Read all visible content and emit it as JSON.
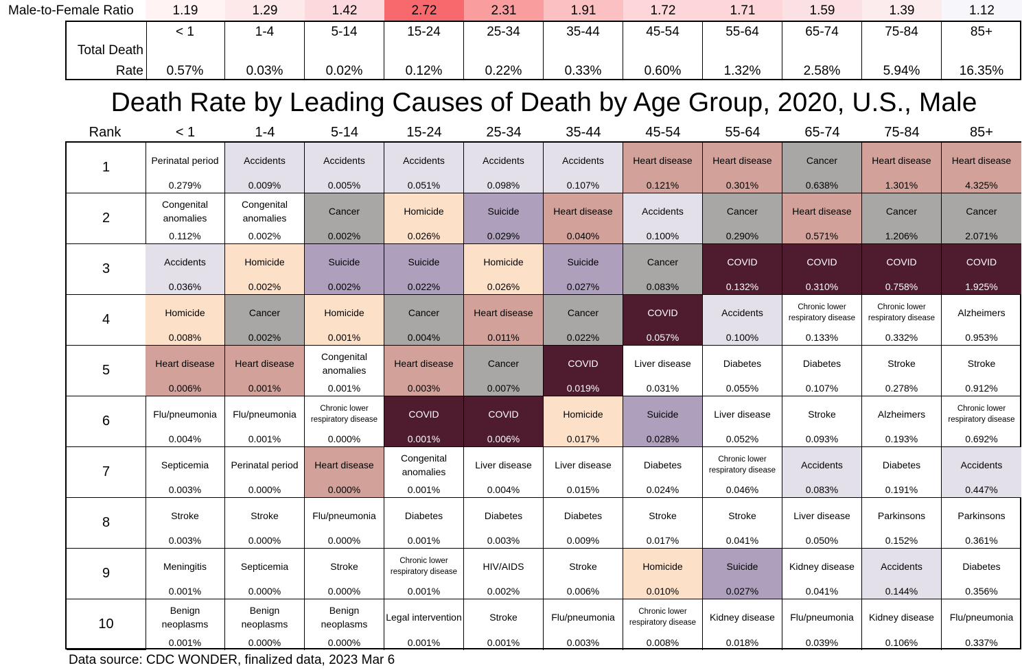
{
  "ratio_label": "Male-to-Female Ratio",
  "ratios": [
    "1.19",
    "1.29",
    "1.42",
    "2.72",
    "2.31",
    "1.91",
    "1.72",
    "1.71",
    "1.59",
    "1.39",
    "1.12"
  ],
  "ratio_colors": [
    "#fff3f3",
    "#fde8ea",
    "#fcd9dc",
    "#f7696c",
    "#f99d9f",
    "#fbc0c2",
    "#fcd6d9",
    "#fcd6d9",
    "#fce1e4",
    "#fdecee",
    "#f6f6fb"
  ],
  "total": {
    "label_line1": "Total Death",
    "label_line2": "Rate",
    "ages": [
      "< 1",
      "1-4",
      "5-14",
      "15-24",
      "25-34",
      "35-44",
      "45-54",
      "55-64",
      "65-74",
      "75-84",
      "85+"
    ],
    "values": [
      "0.57%",
      "0.03%",
      "0.02%",
      "0.12%",
      "0.22%",
      "0.33%",
      "0.60%",
      "1.32%",
      "2.58%",
      "5.94%",
      "16.35%"
    ]
  },
  "title": "Death Rate by Leading Causes of Death by Age Group, 2020, U.S., Male",
  "header": {
    "rank": "Rank",
    "ages": [
      "< 1",
      "1-4",
      "5-14",
      "15-24",
      "25-34",
      "35-44",
      "45-54",
      "55-64",
      "65-74",
      "75-84",
      "85+"
    ]
  },
  "cause_colors": {
    "Accidents": "#e4e0ea",
    "Heart disease": "#d2a29a",
    "Cancer": "#a9a6a6",
    "Homicide": "#fde0c8",
    "Suicide": "#aea0bd",
    "COVID": "#4e1b2f"
  },
  "ranks": [
    "1",
    "2",
    "3",
    "4",
    "5",
    "6",
    "7",
    "8",
    "9",
    "10"
  ],
  "rows": [
    [
      [
        "Perinatal period",
        "0.279%"
      ],
      [
        "Accidents",
        "0.009%"
      ],
      [
        "Accidents",
        "0.005%"
      ],
      [
        "Accidents",
        "0.051%"
      ],
      [
        "Accidents",
        "0.098%"
      ],
      [
        "Accidents",
        "0.107%"
      ],
      [
        "Heart disease",
        "0.121%"
      ],
      [
        "Heart disease",
        "0.301%"
      ],
      [
        "Cancer",
        "0.638%"
      ],
      [
        "Heart disease",
        "1.301%"
      ],
      [
        "Heart disease",
        "4.325%"
      ]
    ],
    [
      [
        "Congenital anomalies",
        "0.112%"
      ],
      [
        "Congenital anomalies",
        "0.002%"
      ],
      [
        "Cancer",
        "0.002%"
      ],
      [
        "Homicide",
        "0.026%"
      ],
      [
        "Suicide",
        "0.029%"
      ],
      [
        "Heart disease",
        "0.040%"
      ],
      [
        "Accidents",
        "0.100%"
      ],
      [
        "Cancer",
        "0.290%"
      ],
      [
        "Heart disease",
        "0.571%"
      ],
      [
        "Cancer",
        "1.206%"
      ],
      [
        "Cancer",
        "2.071%"
      ]
    ],
    [
      [
        "Accidents",
        "0.036%"
      ],
      [
        "Homicide",
        "0.002%"
      ],
      [
        "Suicide",
        "0.002%"
      ],
      [
        "Suicide",
        "0.022%"
      ],
      [
        "Homicide",
        "0.026%"
      ],
      [
        "Suicide",
        "0.027%"
      ],
      [
        "Cancer",
        "0.083%"
      ],
      [
        "COVID",
        "0.132%"
      ],
      [
        "COVID",
        "0.310%"
      ],
      [
        "COVID",
        "0.758%"
      ],
      [
        "COVID",
        "1.925%"
      ]
    ],
    [
      [
        "Homicide",
        "0.008%"
      ],
      [
        "Cancer",
        "0.002%"
      ],
      [
        "Homicide",
        "0.001%"
      ],
      [
        "Cancer",
        "0.004%"
      ],
      [
        "Heart disease",
        "0.011%"
      ],
      [
        "Cancer",
        "0.022%"
      ],
      [
        "COVID",
        "0.057%"
      ],
      [
        "Accidents",
        "0.100%"
      ],
      [
        "Chronic lower respiratory disease",
        "0.133%"
      ],
      [
        "Chronic lower respiratory disease",
        "0.332%"
      ],
      [
        "Alzheimers",
        "0.953%"
      ]
    ],
    [
      [
        "Heart disease",
        "0.006%"
      ],
      [
        "Heart disease",
        "0.001%"
      ],
      [
        "Congenital anomalies",
        "0.001%"
      ],
      [
        "Heart disease",
        "0.003%"
      ],
      [
        "Cancer",
        "0.007%"
      ],
      [
        "COVID",
        "0.019%"
      ],
      [
        "Liver disease",
        "0.031%"
      ],
      [
        "Diabetes",
        "0.055%"
      ],
      [
        "Diabetes",
        "0.107%"
      ],
      [
        "Stroke",
        "0.278%"
      ],
      [
        "Stroke",
        "0.912%"
      ]
    ],
    [
      [
        "Flu/pneumonia",
        "0.004%"
      ],
      [
        "Flu/pneumonia",
        "0.001%"
      ],
      [
        "Chronic lower respiratory disease",
        "0.000%"
      ],
      [
        "COVID",
        "0.001%"
      ],
      [
        "COVID",
        "0.006%"
      ],
      [
        "Homicide",
        "0.017%"
      ],
      [
        "Suicide",
        "0.028%"
      ],
      [
        "Liver disease",
        "0.052%"
      ],
      [
        "Stroke",
        "0.093%"
      ],
      [
        "Alzheimers",
        "0.193%"
      ],
      [
        "Chronic lower respiratory disease",
        "0.692%"
      ]
    ],
    [
      [
        "Septicemia",
        "0.003%"
      ],
      [
        "Perinatal period",
        "0.000%"
      ],
      [
        "Heart disease",
        "0.000%"
      ],
      [
        "Congenital anomalies",
        "0.001%"
      ],
      [
        "Liver disease",
        "0.004%"
      ],
      [
        "Liver disease",
        "0.015%"
      ],
      [
        "Diabetes",
        "0.024%"
      ],
      [
        "Chronic lower respiratory disease",
        "0.046%"
      ],
      [
        "Accidents",
        "0.083%"
      ],
      [
        "Diabetes",
        "0.191%"
      ],
      [
        "Accidents",
        "0.447%"
      ]
    ],
    [
      [
        "Stroke",
        "0.003%"
      ],
      [
        "Stroke",
        "0.000%"
      ],
      [
        "Flu/pneumonia",
        "0.000%"
      ],
      [
        "Diabetes",
        "0.001%"
      ],
      [
        "Diabetes",
        "0.003%"
      ],
      [
        "Diabetes",
        "0.009%"
      ],
      [
        "Stroke",
        "0.017%"
      ],
      [
        "Stroke",
        "0.041%"
      ],
      [
        "Liver disease",
        "0.050%"
      ],
      [
        "Parkinsons",
        "0.152%"
      ],
      [
        "Parkinsons",
        "0.361%"
      ]
    ],
    [
      [
        "Meningitis",
        "0.001%"
      ],
      [
        "Septicemia",
        "0.000%"
      ],
      [
        "Stroke",
        "0.000%"
      ],
      [
        "Chronic lower respiratory disease",
        "0.001%"
      ],
      [
        "HIV/AIDS",
        "0.002%"
      ],
      [
        "Stroke",
        "0.006%"
      ],
      [
        "Homicide",
        "0.010%"
      ],
      [
        "Suicide",
        "0.027%"
      ],
      [
        "Kidney disease",
        "0.041%"
      ],
      [
        "Accidents",
        "0.144%"
      ],
      [
        "Diabetes",
        "0.356%"
      ]
    ],
    [
      [
        "Benign neoplasms",
        "0.001%"
      ],
      [
        "Benign neoplasms",
        "0.000%"
      ],
      [
        "Benign neoplasms",
        "0.000%"
      ],
      [
        "Legal intervention",
        "0.001%"
      ],
      [
        "Stroke",
        "0.001%"
      ],
      [
        "Flu/pneumonia",
        "0.003%"
      ],
      [
        "Chronic lower respiratory disease",
        "0.008%"
      ],
      [
        "Kidney disease",
        "0.018%"
      ],
      [
        "Flu/pneumonia",
        "0.039%"
      ],
      [
        "Kidney disease",
        "0.106%"
      ],
      [
        "Flu/pneumonia",
        "0.337%"
      ]
    ]
  ],
  "source": "Data source: CDC WONDER, finalized data, 2023 Mar 6"
}
